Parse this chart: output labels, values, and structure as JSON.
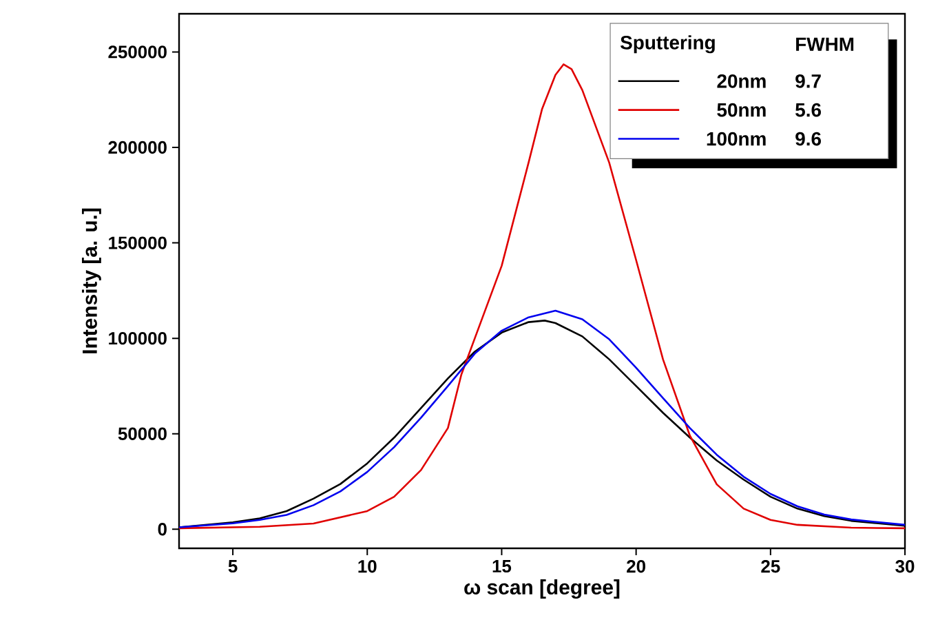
{
  "chart_data": {
    "type": "line",
    "xlabel": "ω scan [degree]",
    "ylabel": "Intensity [a. u.]",
    "xlim": [
      3,
      30
    ],
    "ylim": [
      -10000,
      270000
    ],
    "xticks": [
      5,
      10,
      15,
      20,
      25,
      30
    ],
    "yticks": [
      0,
      50000,
      100000,
      150000,
      200000,
      250000
    ],
    "legend": "top right",
    "legend_title": "Sputtering",
    "annotations": [
      "FWHM",
      "9.7",
      "5.6",
      "9.6"
    ],
    "series": [
      {
        "name": "20nm",
        "color": "#000000",
        "x": [
          3,
          5,
          6,
          7,
          8,
          9,
          10,
          11,
          12,
          13,
          14,
          15,
          16,
          16.6,
          17,
          18,
          19,
          20,
          21,
          22,
          23,
          24,
          25,
          26,
          27,
          28,
          30
        ],
        "values": [
          1000,
          3600,
          5700,
          9500,
          16000,
          23700,
          34500,
          48000,
          63500,
          79000,
          93000,
          103000,
          108500,
          109300,
          108000,
          101000,
          89000,
          75000,
          61000,
          48000,
          36000,
          26000,
          17000,
          10800,
          6900,
          4400,
          1800
        ]
      },
      {
        "name": "50nm",
        "color": "#e00000",
        "x": [
          3,
          6,
          8,
          10,
          11,
          12,
          13,
          13.5,
          14,
          15,
          16,
          16.5,
          17,
          17.3,
          17.6,
          18,
          19,
          20,
          21,
          22,
          23,
          24,
          25,
          26,
          28,
          30
        ],
        "values": [
          500,
          1300,
          3000,
          9500,
          17000,
          31000,
          53000,
          81000,
          100000,
          138000,
          192000,
          220000,
          238000,
          243500,
          241000,
          230000,
          192000,
          141000,
          89000,
          49000,
          23500,
          10800,
          4900,
          2300,
          800,
          500
        ]
      },
      {
        "name": "100nm",
        "color": "#0000ee",
        "x": [
          3,
          5,
          6,
          7,
          8,
          9,
          10,
          11,
          12,
          13,
          14,
          15,
          16,
          17,
          18,
          19,
          20,
          21,
          22,
          23,
          24,
          25,
          26,
          27,
          28,
          30
        ],
        "values": [
          1000,
          3100,
          4900,
          7500,
          12600,
          19800,
          30000,
          43000,
          58400,
          75000,
          92000,
          104000,
          111000,
          114500,
          110000,
          99500,
          84600,
          68700,
          53000,
          39000,
          27500,
          18500,
          12000,
          7700,
          5100,
          2300
        ]
      }
    ]
  }
}
